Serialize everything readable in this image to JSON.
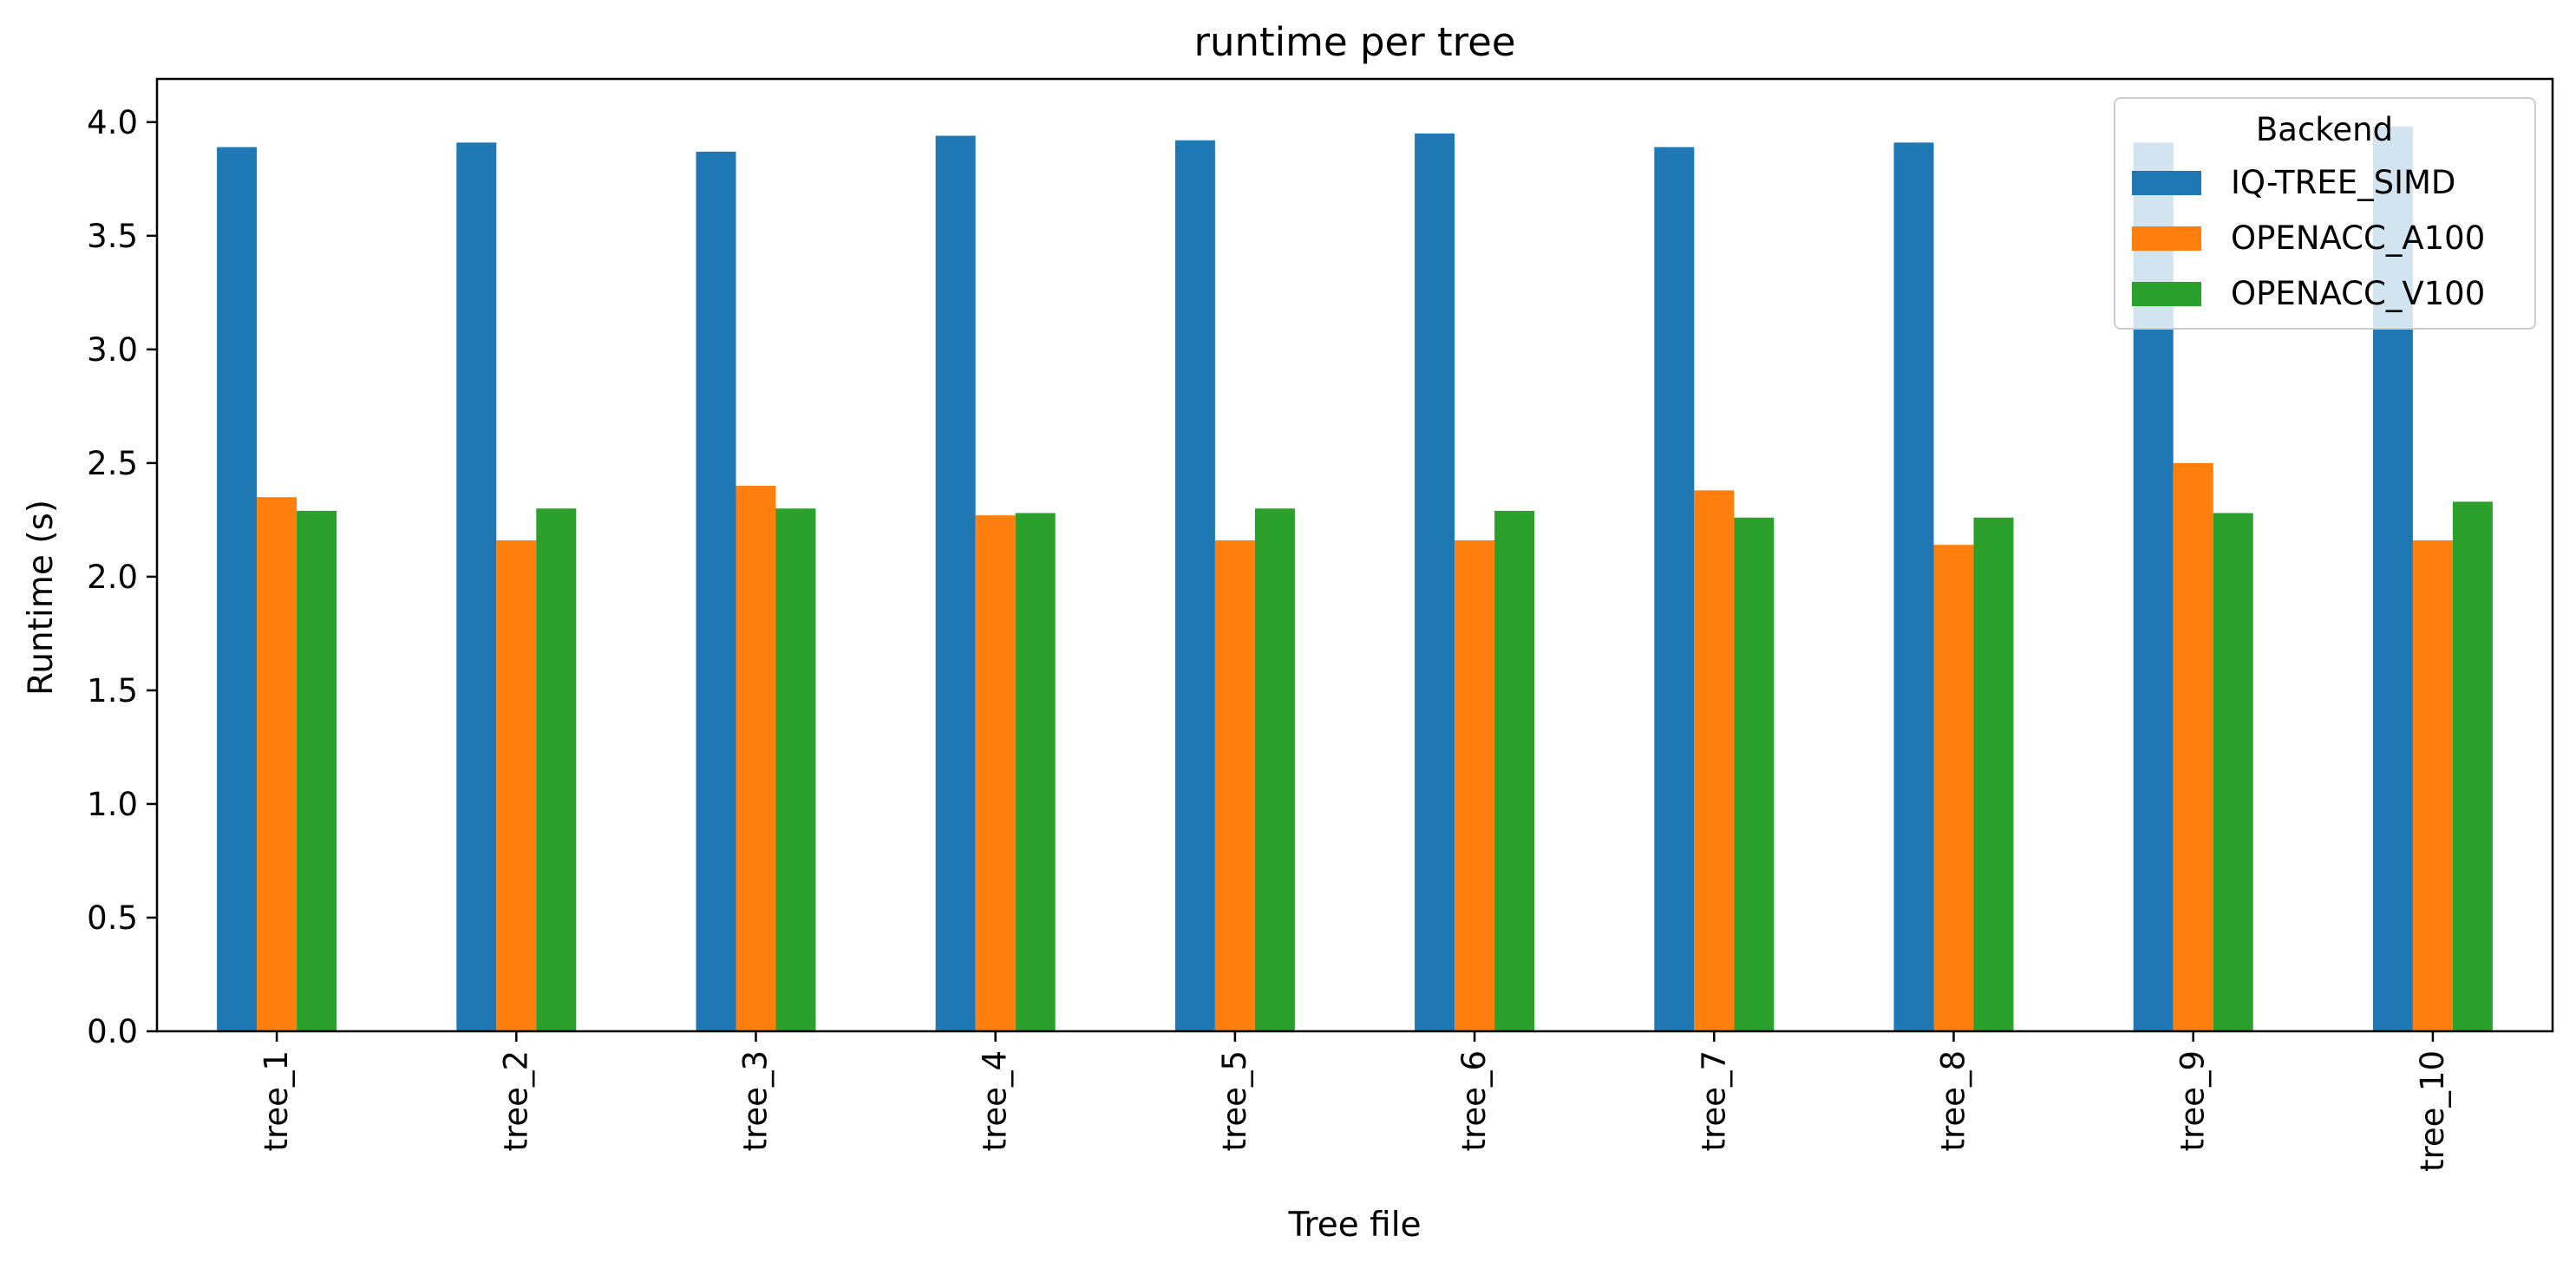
{
  "chart_data": {
    "type": "bar",
    "title": "runtime per tree",
    "xlabel": "Tree file",
    "ylabel": "Runtime (s)",
    "categories": [
      "tree_1",
      "tree_2",
      "tree_3",
      "tree_4",
      "tree_5",
      "tree_6",
      "tree_7",
      "tree_8",
      "tree_9",
      "tree_10"
    ],
    "series": [
      {
        "name": "IQ-TREE_SIMD",
        "color": "#1f77b4",
        "values": [
          3.89,
          3.91,
          3.87,
          3.94,
          3.92,
          3.95,
          3.89,
          3.91,
          3.91,
          3.98
        ]
      },
      {
        "name": "OPENACC_A100",
        "color": "#ff7f0e",
        "values": [
          2.35,
          2.16,
          2.4,
          2.27,
          2.16,
          2.16,
          2.38,
          2.14,
          2.5,
          2.16
        ]
      },
      {
        "name": "OPENACC_V100",
        "color": "#2ca02c",
        "values": [
          2.29,
          2.3,
          2.3,
          2.28,
          2.3,
          2.29,
          2.26,
          2.26,
          2.28,
          2.33
        ]
      }
    ],
    "ylim": [
      0,
      4.19
    ],
    "yticks": [
      "0.0",
      "0.5",
      "1.0",
      "1.5",
      "2.0",
      "2.5",
      "3.0",
      "3.5",
      "4.0"
    ],
    "legend": {
      "title": "Backend",
      "placement": "top-right"
    },
    "grid": false
  }
}
